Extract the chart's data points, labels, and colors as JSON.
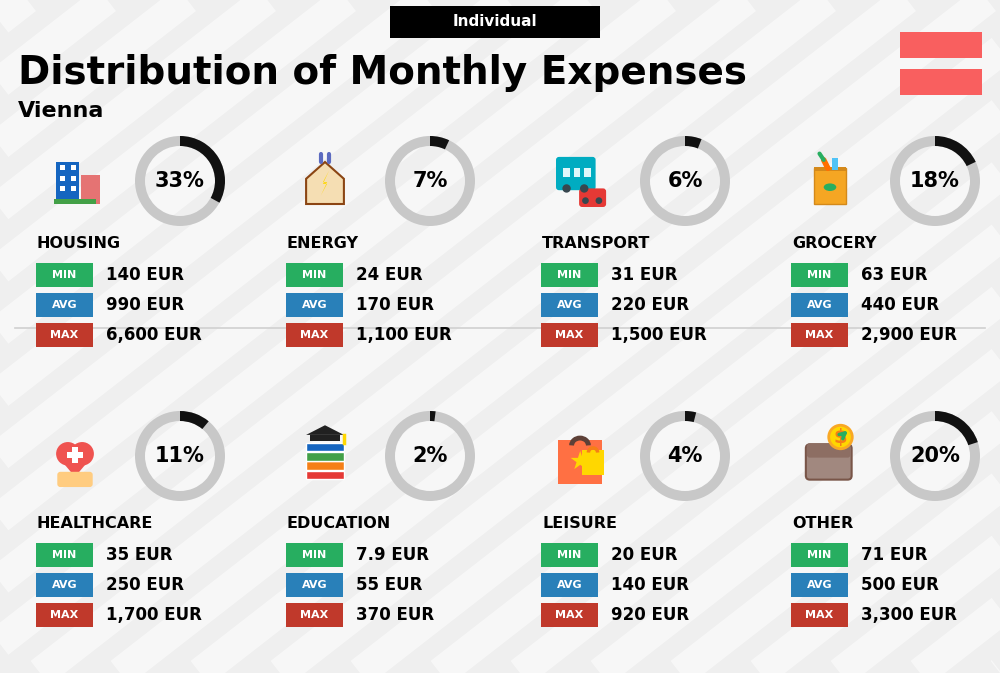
{
  "title": "Distribution of Monthly Expenses",
  "subtitle": "Vienna",
  "tag": "Individual",
  "bg_color": "#efefef",
  "stripe_color": "#ffffff",
  "categories": [
    {
      "name": "HOUSING",
      "pct": 33,
      "min": "140 EUR",
      "avg": "990 EUR",
      "max": "6,600 EUR",
      "row": 0,
      "col": 0
    },
    {
      "name": "ENERGY",
      "pct": 7,
      "min": "24 EUR",
      "avg": "170 EUR",
      "max": "1,100 EUR",
      "row": 0,
      "col": 1
    },
    {
      "name": "TRANSPORT",
      "pct": 6,
      "min": "31 EUR",
      "avg": "220 EUR",
      "max": "1,500 EUR",
      "row": 0,
      "col": 2
    },
    {
      "name": "GROCERY",
      "pct": 18,
      "min": "63 EUR",
      "avg": "440 EUR",
      "max": "2,900 EUR",
      "row": 0,
      "col": 3
    },
    {
      "name": "HEALTHCARE",
      "pct": 11,
      "min": "35 EUR",
      "avg": "250 EUR",
      "max": "1,700 EUR",
      "row": 1,
      "col": 0
    },
    {
      "name": "EDUCATION",
      "pct": 2,
      "min": "7.9 EUR",
      "avg": "55 EUR",
      "max": "370 EUR",
      "row": 1,
      "col": 1
    },
    {
      "name": "LEISURE",
      "pct": 4,
      "min": "20 EUR",
      "avg": "140 EUR",
      "max": "920 EUR",
      "row": 1,
      "col": 2
    },
    {
      "name": "OTHER",
      "pct": 20,
      "min": "71 EUR",
      "avg": "500 EUR",
      "max": "3,300 EUR",
      "row": 1,
      "col": 3
    }
  ],
  "color_min": "#27ae60",
  "color_avg": "#2980b9",
  "color_max": "#c0392b",
  "color_flag_red": "#f95f5f",
  "arc_bg_color": "#c8c8c8",
  "arc_fg_color": "#111111",
  "divider_color": "#d0d0d0"
}
